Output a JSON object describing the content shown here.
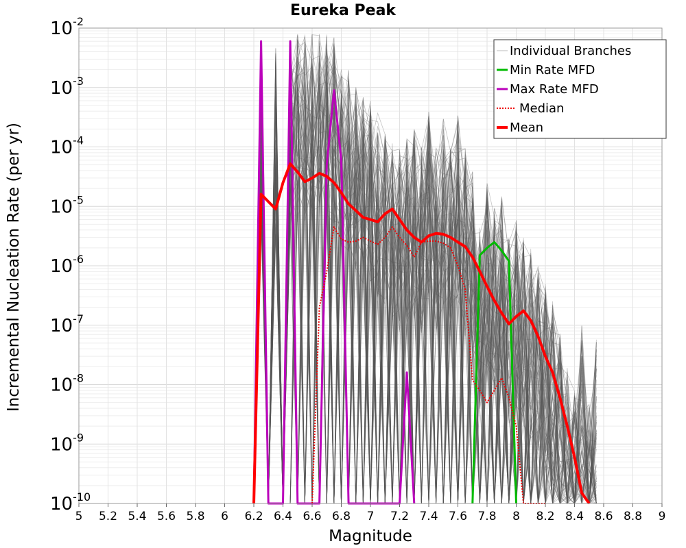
{
  "chart_data": {
    "type": "line",
    "title": "Eureka Peak",
    "xlabel": "Magnitude",
    "ylabel": "Incremental Nucleation Rate (per yr)",
    "xlim": [
      5,
      9
    ],
    "ylim": [
      1e-10,
      0.01
    ],
    "yscale": "log",
    "grid": true,
    "legend_position": "top-right",
    "x_ticks": [
      "5",
      "5.2",
      "5.4",
      "5.6",
      "5.8",
      "6",
      "6.2",
      "6.4",
      "6.6",
      "6.8",
      "7",
      "7.2",
      "7.4",
      "7.6",
      "7.8",
      "8",
      "8.2",
      "8.4",
      "8.6",
      "8.8",
      "9"
    ],
    "y_ticks": [
      {
        "base": "10",
        "exp": "-10"
      },
      {
        "base": "10",
        "exp": "-9"
      },
      {
        "base": "10",
        "exp": "-8"
      },
      {
        "base": "10",
        "exp": "-7"
      },
      {
        "base": "10",
        "exp": "-6"
      },
      {
        "base": "10",
        "exp": "-5"
      },
      {
        "base": "10",
        "exp": "-4"
      },
      {
        "base": "10",
        "exp": "-3"
      },
      {
        "base": "10",
        "exp": "-2"
      }
    ],
    "series": [
      {
        "name": "Individual Branches",
        "color": "#555555",
        "style": "thin-band",
        "note": "thousands of logic-tree branch MFDs; band envelope shown",
        "envelope_x": [
          6.2,
          6.25,
          6.3,
          6.35,
          6.4,
          6.45,
          6.5,
          6.55,
          6.6,
          6.65,
          6.7,
          6.75,
          6.8,
          6.85,
          6.9,
          6.95,
          7.0,
          7.05,
          7.1,
          7.15,
          7.2,
          7.25,
          7.3,
          7.35,
          7.4,
          7.45,
          7.5,
          7.55,
          7.6,
          7.65,
          7.7,
          7.75,
          7.8,
          7.85,
          7.9,
          7.95,
          8.0,
          8.05,
          8.1,
          8.15,
          8.2,
          8.25,
          8.3,
          8.35,
          8.4,
          8.45,
          8.5,
          8.55
        ],
        "envelope_upper": [
          1e-10,
          0.006,
          1e-10,
          0.005,
          1e-10,
          0.006,
          0.008,
          0.008,
          0.009,
          0.009,
          0.009,
          0.007,
          0.003,
          0.002,
          0.0012,
          0.0008,
          0.0006,
          0.0004,
          0.0003,
          0.00015,
          0.0001,
          0.00015,
          0.0002,
          0.0001,
          0.0004,
          0.0001,
          0.0003,
          0.0001,
          0.00035,
          0.0001,
          4e-05,
          5e-06,
          3e-05,
          1e-05,
          1.5e-05,
          3e-06,
          6e-06,
          3e-06,
          2e-06,
          1e-06,
          5e-07,
          3e-07,
          8e-08,
          2e-08,
          8e-09,
          1e-07,
          5e-09,
          6e-08
        ]
      },
      {
        "name": "Min Rate MFD",
        "color": "#00bb00",
        "x": [
          7.7,
          7.75,
          7.8,
          7.85,
          7.9,
          7.95,
          8.0
        ],
        "y": [
          1e-10,
          1.5e-06,
          2e-06,
          2.5e-06,
          1.8e-06,
          1.2e-06,
          1e-10
        ]
      },
      {
        "name": "Max Rate MFD",
        "color": "#bb00bb",
        "x": [
          6.2,
          6.25,
          6.3,
          6.35,
          6.4,
          6.45,
          6.5,
          6.55,
          6.6,
          6.65,
          6.7,
          6.75,
          6.8,
          6.85,
          6.9,
          7.2,
          7.25,
          7.3
        ],
        "y": [
          1e-10,
          0.006,
          1e-10,
          1e-10,
          1e-10,
          0.006,
          1e-10,
          1e-10,
          1e-10,
          1e-10,
          5e-05,
          0.0009,
          6e-05,
          1e-10,
          1e-10,
          1e-10,
          1.6e-08,
          1e-10
        ]
      },
      {
        "name": "Median",
        "color": "#ee0000",
        "dashed": true,
        "x": [
          6.6,
          6.65,
          6.7,
          6.75,
          6.8,
          6.85,
          6.9,
          6.95,
          7.0,
          7.05,
          7.1,
          7.15,
          7.2,
          7.25,
          7.3,
          7.35,
          7.4,
          7.45,
          7.5,
          7.55,
          7.6,
          7.65,
          7.7,
          7.75,
          7.8,
          7.85,
          7.9,
          7.95,
          8.0,
          8.05,
          8.1,
          8.15,
          8.2
        ],
        "y": [
          1e-10,
          2e-07,
          8e-07,
          4.5e-06,
          2.8e-06,
          2.5e-06,
          2.6e-06,
          3e-06,
          2.6e-06,
          2.3e-06,
          3e-06,
          4.5e-06,
          3e-06,
          2.2e-06,
          1.4e-06,
          2.5e-06,
          2.6e-06,
          2.6e-06,
          2.4e-06,
          2e-06,
          1e-06,
          4e-07,
          1.2e-08,
          8e-09,
          5e-09,
          8e-09,
          1.3e-08,
          6e-09,
          2e-09,
          1e-10,
          1e-10,
          1e-10,
          1e-10
        ]
      },
      {
        "name": "Mean",
        "color": "#ff0000",
        "x": [
          6.2,
          6.25,
          6.3,
          6.35,
          6.4,
          6.45,
          6.5,
          6.55,
          6.6,
          6.65,
          6.7,
          6.75,
          6.8,
          6.85,
          6.9,
          6.95,
          7.0,
          7.05,
          7.1,
          7.15,
          7.2,
          7.25,
          7.3,
          7.35,
          7.4,
          7.45,
          7.5,
          7.55,
          7.6,
          7.65,
          7.7,
          7.75,
          7.8,
          7.85,
          7.9,
          7.95,
          8.0,
          8.05,
          8.1,
          8.15,
          8.2,
          8.25,
          8.3,
          8.35,
          8.4,
          8.45,
          8.5
        ],
        "y": [
          1e-10,
          1.6e-05,
          1.2e-05,
          9e-06,
          2.5e-05,
          5.2e-05,
          3.8e-05,
          2.6e-05,
          3e-05,
          3.6e-05,
          3.2e-05,
          2.5e-05,
          1.7e-05,
          1.1e-05,
          8.5e-06,
          6.5e-06,
          6e-06,
          5.5e-06,
          7.5e-06,
          9e-06,
          6e-06,
          4e-06,
          3e-06,
          2.5e-06,
          3.2e-06,
          3.5e-06,
          3.4e-06,
          3e-06,
          2.5e-06,
          2.1e-06,
          1.4e-06,
          8e-07,
          4.5e-07,
          2.6e-07,
          1.6e-07,
          1.05e-07,
          1.4e-07,
          1.75e-07,
          1.2e-07,
          6.5e-08,
          3e-08,
          1.6e-08,
          6e-09,
          2e-09,
          6e-10,
          1.5e-10,
          1e-10
        ]
      }
    ],
    "legend": [
      {
        "label": "Individual Branches",
        "color": "#bbbbbb",
        "style": "thin"
      },
      {
        "label": "Min Rate MFD",
        "color": "#00bb00",
        "style": "solid"
      },
      {
        "label": "Max Rate MFD",
        "color": "#bb00bb",
        "style": "solid"
      },
      {
        "label": "Median",
        "color": "#ee0000",
        "style": "dotted"
      },
      {
        "label": "Mean",
        "color": "#ff0000",
        "style": "thick"
      }
    ]
  }
}
